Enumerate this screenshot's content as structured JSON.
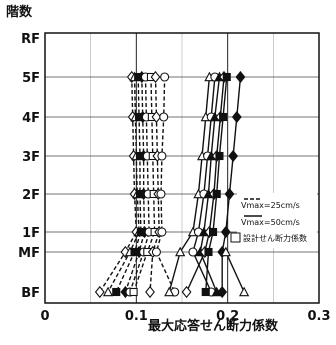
{
  "chart_data": {
    "type": "line",
    "xlabel": "最大応答せん断力係数",
    "ylabel": "階数",
    "xlim": [
      0,
      0.3
    ],
    "x_ticks": [
      {
        "label": "0",
        "value": 0
      },
      {
        "label": "0.1",
        "value": 0.1
      },
      {
        "label": "0.2",
        "value": 0.2
      },
      {
        "label": "0.3",
        "value": 0.3
      }
    ],
    "y_categories": [
      "BF",
      "MF",
      "1F",
      "2F",
      "3F",
      "4F",
      "5F",
      "RF"
    ],
    "grid": true,
    "legend": {
      "placement": "right",
      "entries": [
        {
          "label": "Vmax=25cm/s",
          "style": "dashed"
        },
        {
          "label": "Vmax=50cm/s",
          "style": "solid"
        },
        {
          "label": "設計せん断力係数",
          "style": "box"
        }
      ]
    },
    "series": [
      {
        "group": "25",
        "marker": "diamond-open",
        "values": [
          {
            "floor": "5F",
            "x": 0.095
          },
          {
            "floor": "4F",
            "x": 0.096
          },
          {
            "floor": "3F",
            "x": 0.097
          },
          {
            "floor": "2F",
            "x": 0.098
          },
          {
            "floor": "1F",
            "x": 0.1
          },
          {
            "floor": "MF",
            "x": 0.088
          },
          {
            "floor": "BF",
            "x": 0.06
          }
        ]
      },
      {
        "group": "25",
        "marker": "triangle-open",
        "values": [
          {
            "floor": "5F",
            "x": 0.098
          },
          {
            "floor": "4F",
            "x": 0.099
          },
          {
            "floor": "3F",
            "x": 0.1
          },
          {
            "floor": "2F",
            "x": 0.101
          },
          {
            "floor": "1F",
            "x": 0.103
          },
          {
            "floor": "MF",
            "x": 0.093
          },
          {
            "floor": "BF",
            "x": 0.069
          }
        ]
      },
      {
        "group": "25",
        "marker": "square-filled",
        "values": [
          {
            "floor": "5F",
            "x": 0.102
          },
          {
            "floor": "4F",
            "x": 0.103
          },
          {
            "floor": "3F",
            "x": 0.104
          },
          {
            "floor": "2F",
            "x": 0.104
          },
          {
            "floor": "1F",
            "x": 0.105
          },
          {
            "floor": "MF",
            "x": 0.098
          },
          {
            "floor": "BF",
            "x": 0.078
          }
        ]
      },
      {
        "group": "25",
        "marker": "diamond-filled",
        "values": [
          {
            "floor": "5F",
            "x": 0.106
          },
          {
            "floor": "4F",
            "x": 0.107
          },
          {
            "floor": "3F",
            "x": 0.108
          },
          {
            "floor": "2F",
            "x": 0.108
          },
          {
            "floor": "1F",
            "x": 0.109
          },
          {
            "floor": "MF",
            "x": 0.103
          },
          {
            "floor": "BF",
            "x": 0.088
          }
        ]
      },
      {
        "group": "25",
        "marker": "circle-open",
        "values": [
          {
            "floor": "5F",
            "x": 0.11
          },
          {
            "floor": "4F",
            "x": 0.111
          },
          {
            "floor": "3F",
            "x": 0.112
          },
          {
            "floor": "2F",
            "x": 0.113
          },
          {
            "floor": "1F",
            "x": 0.114
          },
          {
            "floor": "MF",
            "x": 0.108
          },
          {
            "floor": "BF",
            "x": 0.093
          }
        ]
      },
      {
        "group": "25",
        "marker": "square-open",
        "values": [
          {
            "floor": "5F",
            "x": 0.116
          },
          {
            "floor": "4F",
            "x": 0.117
          },
          {
            "floor": "3F",
            "x": 0.118
          },
          {
            "floor": "2F",
            "x": 0.119
          },
          {
            "floor": "1F",
            "x": 0.12
          },
          {
            "floor": "MF",
            "x": 0.112
          },
          {
            "floor": "BF",
            "x": 0.097
          }
        ]
      },
      {
        "group": "25",
        "marker": "diamond-open",
        "values": [
          {
            "floor": "5F",
            "x": 0.121
          },
          {
            "floor": "4F",
            "x": 0.122
          },
          {
            "floor": "3F",
            "x": 0.123
          },
          {
            "floor": "2F",
            "x": 0.124
          },
          {
            "floor": "1F",
            "x": 0.125
          },
          {
            "floor": "MF",
            "x": 0.118
          },
          {
            "floor": "BF",
            "x": 0.115
          }
        ]
      },
      {
        "group": "25",
        "marker": "circle-open",
        "values": [
          {
            "floor": "5F",
            "x": 0.131
          },
          {
            "floor": "4F",
            "x": 0.13
          },
          {
            "floor": "3F",
            "x": 0.128
          },
          {
            "floor": "2F",
            "x": 0.127
          },
          {
            "floor": "1F",
            "x": 0.128
          },
          {
            "floor": "MF",
            "x": 0.122
          },
          {
            "floor": "BF",
            "x": 0.142
          }
        ]
      },
      {
        "group": "50",
        "marker": "triangle-open",
        "values": [
          {
            "floor": "5F",
            "x": 0.18
          },
          {
            "floor": "4F",
            "x": 0.176
          },
          {
            "floor": "3F",
            "x": 0.172
          },
          {
            "floor": "2F",
            "x": 0.168
          },
          {
            "floor": "1F",
            "x": 0.162
          },
          {
            "floor": "MF",
            "x": 0.148
          },
          {
            "floor": "BF",
            "x": 0.136
          }
        ]
      },
      {
        "group": "50",
        "marker": "circle-open",
        "values": [
          {
            "floor": "5F",
            "x": 0.186
          },
          {
            "floor": "4F",
            "x": 0.182
          },
          {
            "floor": "3F",
            "x": 0.178
          },
          {
            "floor": "2F",
            "x": 0.174
          },
          {
            "floor": "1F",
            "x": 0.168
          },
          {
            "floor": "MF",
            "x": 0.162
          },
          {
            "floor": "BF",
            "x": 0.182
          }
        ]
      },
      {
        "group": "50",
        "marker": "triangle-filled",
        "values": [
          {
            "floor": "5F",
            "x": 0.191
          },
          {
            "floor": "4F",
            "x": 0.186
          },
          {
            "floor": "3F",
            "x": 0.182
          },
          {
            "floor": "2F",
            "x": 0.179
          },
          {
            "floor": "1F",
            "x": 0.174
          },
          {
            "floor": "MF",
            "x": 0.17
          },
          {
            "floor": "BF",
            "x": 0.188
          }
        ]
      },
      {
        "group": "50",
        "marker": "diamond-open",
        "values": [
          {
            "floor": "5F",
            "x": 0.196
          },
          {
            "floor": "4F",
            "x": 0.192
          },
          {
            "floor": "3F",
            "x": 0.188
          },
          {
            "floor": "2F",
            "x": 0.185
          },
          {
            "floor": "1F",
            "x": 0.18
          },
          {
            "floor": "MF",
            "x": 0.175
          },
          {
            "floor": "BF",
            "x": 0.155
          }
        ]
      },
      {
        "group": "50",
        "marker": "square-filled",
        "values": [
          {
            "floor": "5F",
            "x": 0.199
          },
          {
            "floor": "4F",
            "x": 0.195
          },
          {
            "floor": "3F",
            "x": 0.191
          },
          {
            "floor": "2F",
            "x": 0.188
          },
          {
            "floor": "1F",
            "x": 0.184
          },
          {
            "floor": "MF",
            "x": 0.179
          },
          {
            "floor": "BF",
            "x": 0.176
          }
        ]
      },
      {
        "group": "50",
        "marker": "diamond-filled",
        "values": [
          {
            "floor": "5F",
            "x": 0.214
          },
          {
            "floor": "4F",
            "x": 0.21
          },
          {
            "floor": "3F",
            "x": 0.206
          },
          {
            "floor": "2F",
            "x": 0.202
          },
          {
            "floor": "1F",
            "x": 0.198
          },
          {
            "floor": "MF",
            "x": 0.194
          },
          {
            "floor": "BF",
            "x": 0.194
          }
        ]
      },
      {
        "group": "50",
        "marker": "triangle-open",
        "values": [
          {
            "floor": "MF",
            "x": 0.198
          },
          {
            "floor": "BF",
            "x": 0.218
          }
        ]
      }
    ]
  }
}
